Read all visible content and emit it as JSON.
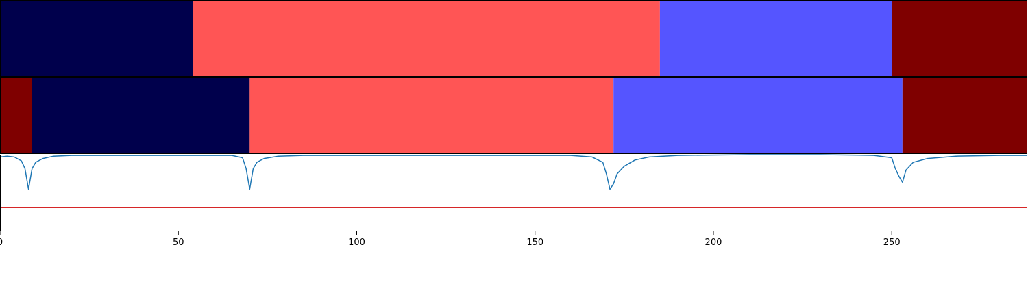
{
  "chart_data": [
    {
      "type": "segmentation-bar",
      "xlim": [
        0,
        288
      ],
      "segments": [
        {
          "start": 0,
          "end": 54,
          "color": "#00004c"
        },
        {
          "start": 54,
          "end": 185,
          "color": "#ff5555"
        },
        {
          "start": 185,
          "end": 250,
          "color": "#5555ff"
        },
        {
          "start": 250,
          "end": 288,
          "color": "#7f0000"
        }
      ]
    },
    {
      "type": "segmentation-bar",
      "xlim": [
        0,
        288
      ],
      "segments": [
        {
          "start": 0,
          "end": 9,
          "color": "#7f0000"
        },
        {
          "start": 9,
          "end": 70,
          "color": "#00004c"
        },
        {
          "start": 70,
          "end": 172,
          "color": "#ff5555"
        },
        {
          "start": 172,
          "end": 253,
          "color": "#5555ff"
        },
        {
          "start": 253,
          "end": 288,
          "color": "#7f0000"
        }
      ]
    },
    {
      "type": "line",
      "xlim": [
        0,
        288
      ],
      "ylim": [
        0,
        1
      ],
      "xticks": [
        "0",
        "50",
        "100",
        "150",
        "200",
        "250"
      ],
      "tick_values": [
        0,
        50,
        100,
        150,
        200,
        250
      ],
      "series": [
        {
          "color": "#1f77b4",
          "x": [
            0,
            2,
            4,
            6,
            7,
            8,
            9,
            10,
            12,
            15,
            20,
            30,
            40,
            50,
            60,
            65,
            68,
            69,
            70,
            71,
            72,
            74,
            78,
            85,
            100,
            120,
            140,
            160,
            166,
            169,
            170,
            171,
            172,
            173,
            175,
            178,
            182,
            190,
            210,
            230,
            245,
            250,
            251,
            252,
            253,
            254,
            256,
            260,
            268,
            280,
            288
          ],
          "y": [
            0.97,
            0.98,
            0.97,
            0.92,
            0.82,
            0.55,
            0.82,
            0.9,
            0.95,
            0.98,
            0.99,
            0.99,
            0.99,
            0.99,
            0.99,
            0.99,
            0.96,
            0.82,
            0.55,
            0.82,
            0.9,
            0.95,
            0.98,
            0.99,
            0.99,
            0.99,
            0.99,
            0.99,
            0.97,
            0.9,
            0.75,
            0.55,
            0.62,
            0.75,
            0.85,
            0.93,
            0.97,
            0.99,
            1.0,
            1.0,
            0.99,
            0.96,
            0.82,
            0.72,
            0.64,
            0.8,
            0.9,
            0.95,
            0.98,
            0.99,
            0.99
          ]
        }
      ],
      "threshold": {
        "value": 0.31,
        "color": "#d62728"
      }
    }
  ]
}
